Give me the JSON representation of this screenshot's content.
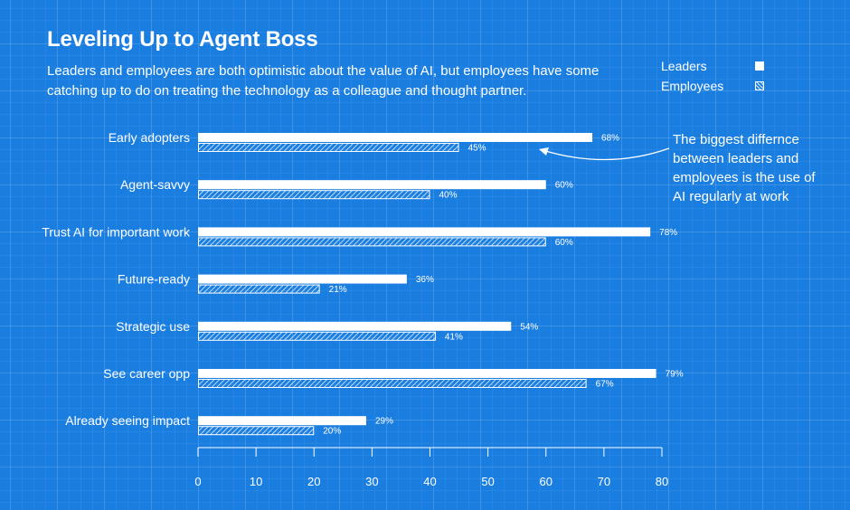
{
  "chart_data": {
    "type": "bar",
    "orientation": "horizontal",
    "title": "Leveling Up to Agent Boss",
    "subtitle": "Leaders and employees are both optimistic about the value of AI, but employees have some catching up to do on treating the technology as a colleague and thought partner.",
    "categories": [
      "Early adopters",
      "Agent-savvy",
      "Trust AI for important work",
      "Future-ready",
      "Strategic use",
      "See career opp",
      "Already seeing impact"
    ],
    "series": [
      {
        "name": "Leaders",
        "values": [
          68,
          60,
          78,
          36,
          54,
          79,
          29
        ],
        "style": "solid"
      },
      {
        "name": "Employees",
        "values": [
          45,
          40,
          60,
          21,
          41,
          67,
          20
        ],
        "style": "hatched"
      }
    ],
    "value_suffix": "%",
    "xlim": [
      0,
      80
    ],
    "xticks": [
      0,
      10,
      20,
      30,
      40,
      50,
      60,
      70,
      80
    ],
    "xlabel": "",
    "ylabel": "",
    "grid": false,
    "legend_position": "top-right",
    "annotation": "The biggest differnce between leaders and employees is the use of AI regularly at work",
    "colors": {
      "background": "#1a7ee0",
      "bar": "#ffffff"
    }
  }
}
